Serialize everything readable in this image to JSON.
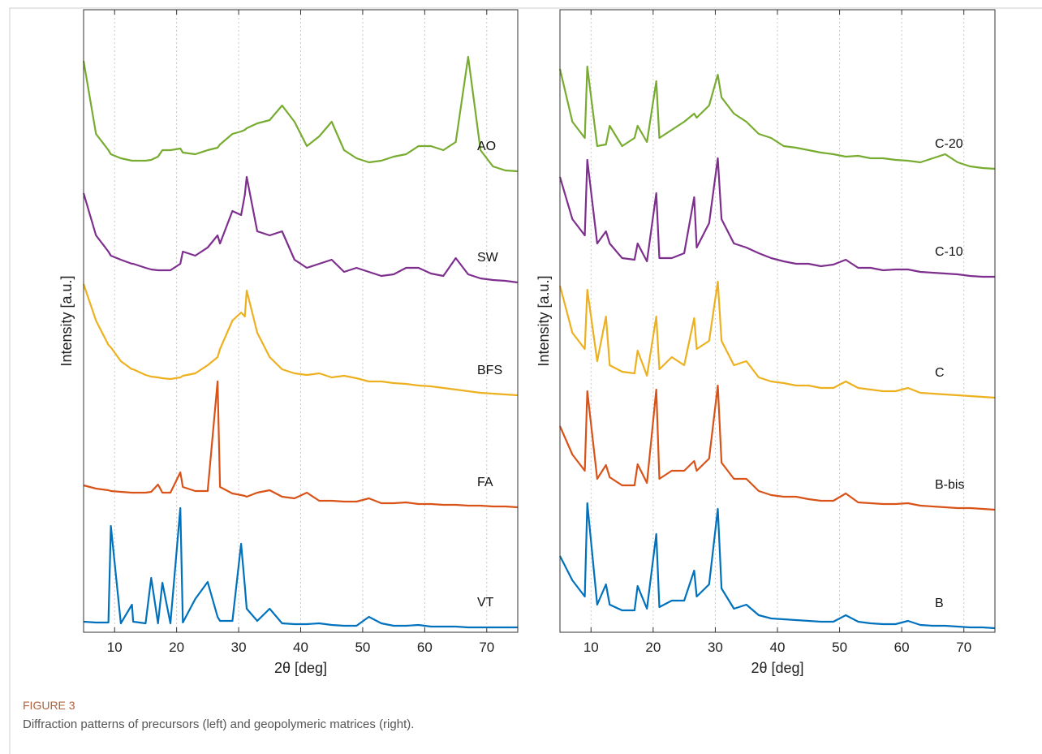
{
  "chart_data": [
    {
      "type": "line",
      "xlabel": "2θ [deg]",
      "ylabel": "Intensity [a.u.]",
      "xlim": [
        5,
        75
      ],
      "ylim": [
        0,
        767
      ],
      "xticks": [
        10,
        20,
        30,
        40,
        50,
        60,
        70
      ],
      "grid": true,
      "x": [
        5,
        7,
        9,
        9.4,
        11,
        12.8,
        13,
        15,
        15.9,
        17,
        17.7,
        19,
        20.6,
        21,
        23,
        25,
        26.6,
        27,
        29,
        30.4,
        31,
        31.3,
        33,
        35,
        37,
        39,
        41,
        43,
        45,
        47,
        49,
        51,
        53,
        55,
        57,
        59,
        61,
        63,
        65,
        67,
        69,
        71,
        73,
        75
      ],
      "series": [
        {
          "name": "AO",
          "color": "#77ac30",
          "values": [
            704,
            614,
            594,
            589,
            584,
            581,
            581,
            581,
            582,
            586,
            594,
            594,
            596,
            591,
            589,
            594,
            597,
            601,
            614,
            617,
            619,
            621,
            627,
            631,
            649,
            629,
            599,
            611,
            629,
            594,
            584,
            579,
            581,
            586,
            589,
            599,
            599,
            594,
            604,
            709,
            594,
            574,
            569,
            568
          ]
        },
        {
          "name": "SW",
          "color": "#7e2f8e",
          "values": [
            541,
            489,
            469,
            464,
            459,
            454,
            454,
            449,
            447,
            446,
            446,
            446,
            454,
            469,
            464,
            474,
            489,
            479,
            519,
            514,
            539,
            561,
            494,
            489,
            494,
            459,
            449,
            454,
            459,
            444,
            449,
            444,
            439,
            441,
            449,
            449,
            442,
            439,
            461,
            441,
            436,
            434,
            433,
            431
          ]
        },
        {
          "name": "BFS",
          "color": "#edb120",
          "values": [
            429,
            384,
            354,
            351,
            334,
            324,
            324,
            317,
            315,
            314,
            313,
            312,
            314,
            316,
            319,
            329,
            339,
            349,
            384,
            394,
            389,
            421,
            369,
            339,
            324,
            319,
            317,
            319,
            314,
            316,
            313,
            309,
            309,
            307,
            306,
            304,
            303,
            301,
            299,
            297,
            295,
            294,
            293,
            292
          ]
        },
        {
          "name": "FA",
          "color": "#d95319",
          "values": [
            181,
            177,
            175,
            174,
            173,
            172,
            172,
            172,
            173,
            182,
            172,
            172,
            197,
            179,
            174,
            174,
            309,
            179,
            171,
            169,
            168,
            167,
            172,
            175,
            167,
            165,
            172,
            162,
            162,
            161,
            161,
            165,
            159,
            159,
            160,
            158,
            158,
            157,
            157,
            156,
            156,
            155,
            155,
            154
          ]
        },
        {
          "name": "VT",
          "color": "#0072bd",
          "values": [
            13,
            12,
            12,
            131,
            11,
            34,
            13,
            11,
            67,
            11,
            61,
            11,
            153,
            12,
            41,
            62,
            19,
            14,
            14,
            109,
            57,
            29,
            14,
            29,
            11,
            10,
            10,
            11,
            9,
            8,
            8,
            19,
            11,
            8,
            8,
            9,
            7,
            7,
            7,
            6,
            6,
            6,
            6,
            6
          ]
        }
      ]
    },
    {
      "type": "line",
      "xlabel": "2θ [deg]",
      "ylabel": "Intensity [a.u.]",
      "xlim": [
        5,
        75
      ],
      "ylim": [
        0,
        767
      ],
      "xticks": [
        10,
        20,
        30,
        40,
        50,
        60,
        70
      ],
      "grid": true,
      "x": [
        5,
        7,
        9,
        9.4,
        11,
        12.4,
        13,
        15,
        17,
        17.5,
        19,
        20.5,
        21,
        23,
        25,
        26.6,
        27,
        29,
        30.4,
        31,
        33,
        35,
        37,
        39,
        41,
        43,
        45,
        47,
        49,
        51,
        53,
        55,
        57,
        59,
        61,
        63,
        65,
        67,
        69,
        71,
        73,
        75
      ],
      "series": [
        {
          "name": "C-20",
          "color": "#77ac30",
          "values": [
            694,
            629,
            609,
            697,
            599,
            601,
            624,
            599,
            609,
            624,
            604,
            679,
            609,
            619,
            629,
            639,
            634,
            649,
            687,
            659,
            639,
            629,
            614,
            609,
            599,
            597,
            594,
            591,
            589,
            586,
            587,
            584,
            584,
            582,
            581,
            579,
            584,
            589,
            579,
            574,
            572,
            571
          ]
        },
        {
          "name": "C-10",
          "color": "#7e2f8e",
          "values": [
            561,
            509,
            489,
            582,
            479,
            494,
            479,
            461,
            459,
            479,
            457,
            541,
            461,
            461,
            467,
            536,
            474,
            504,
            584,
            509,
            479,
            474,
            467,
            461,
            457,
            454,
            454,
            451,
            453,
            459,
            449,
            449,
            446,
            447,
            447,
            444,
            443,
            442,
            441,
            439,
            438,
            438
          ]
        },
        {
          "name": "C",
          "color": "#edb120",
          "values": [
            427,
            369,
            349,
            422,
            334,
            389,
            329,
            321,
            319,
            347,
            316,
            389,
            324,
            339,
            329,
            387,
            349,
            359,
            432,
            359,
            329,
            334,
            314,
            309,
            307,
            304,
            304,
            301,
            301,
            309,
            301,
            299,
            297,
            297,
            301,
            295,
            294,
            293,
            292,
            291,
            290,
            289
          ]
        },
        {
          "name": "B-bis",
          "color": "#d95319",
          "values": [
            254,
            219,
            199,
            297,
            189,
            206,
            191,
            181,
            181,
            207,
            184,
            299,
            189,
            199,
            199,
            211,
            199,
            214,
            304,
            209,
            189,
            189,
            174,
            169,
            167,
            167,
            164,
            162,
            162,
            171,
            160,
            159,
            158,
            158,
            159,
            156,
            155,
            154,
            153,
            153,
            152,
            151
          ]
        },
        {
          "name": "B",
          "color": "#0072bd",
          "values": [
            94,
            64,
            44,
            159,
            34,
            59,
            34,
            27,
            27,
            57,
            29,
            121,
            31,
            39,
            39,
            76,
            44,
            59,
            152,
            54,
            29,
            34,
            21,
            17,
            16,
            15,
            14,
            13,
            13,
            21,
            13,
            11,
            10,
            10,
            14,
            9,
            8,
            8,
            7,
            6,
            6,
            5
          ]
        }
      ]
    }
  ],
  "figure": {
    "label": "FIGURE 3",
    "caption": "Diffraction patterns of precursors (left) and geopolymeric matrices (right)."
  }
}
